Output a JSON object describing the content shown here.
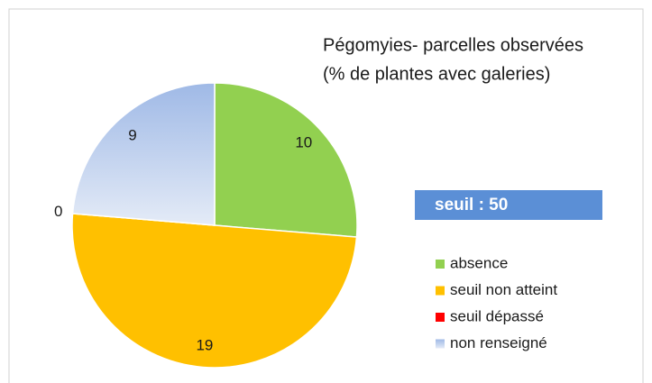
{
  "chart_data": {
    "type": "pie",
    "title": "Pégomyies- parcelles observées",
    "subtitle": "(% de plantes avec galeries)",
    "annotation": "seuil : 50",
    "categories": [
      "absence",
      "seuil non atteint",
      "seuil dépassé",
      "non renseigné"
    ],
    "values": [
      10,
      19,
      0,
      9
    ],
    "colors": [
      "#92d050",
      "#ffc000",
      "#ff0000",
      "#b4c7e7"
    ],
    "legend": "right"
  }
}
